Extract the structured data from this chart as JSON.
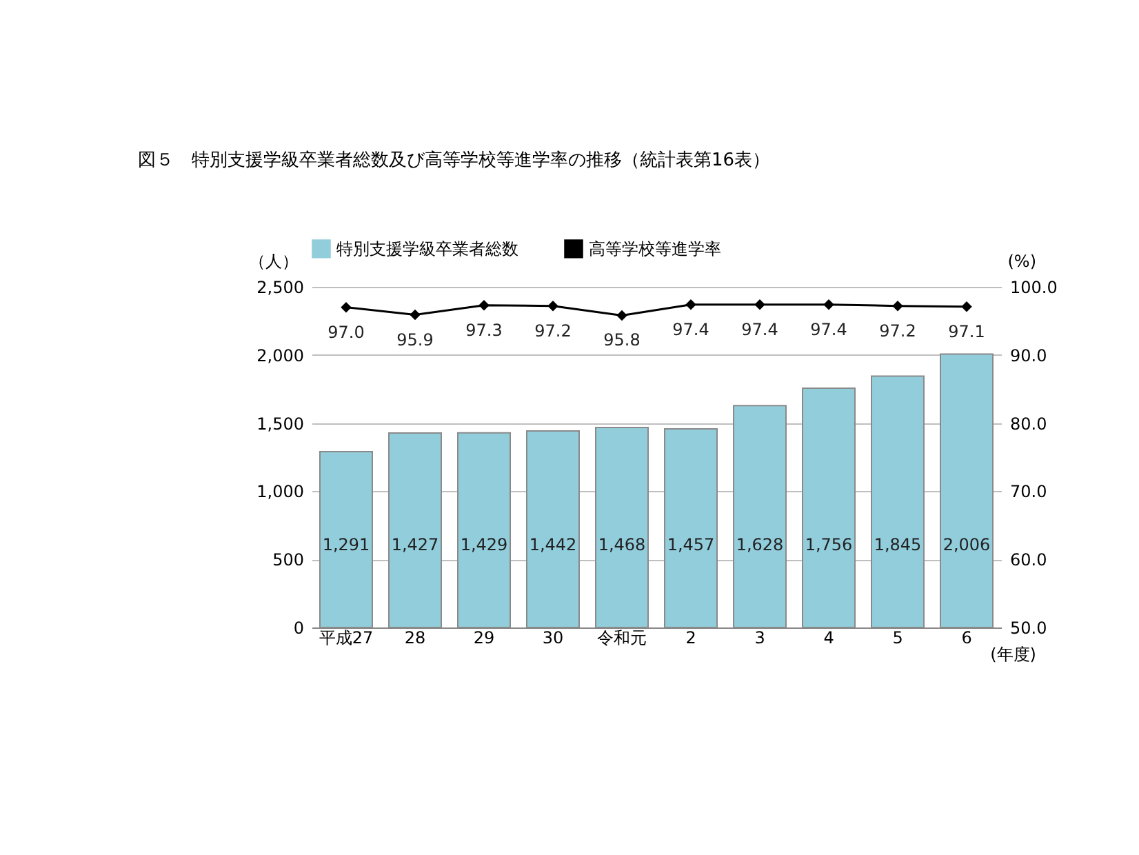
{
  "chart_data": {
    "type": "bar",
    "title": "図５　特別支援学級卒業者総数及び高等学校等進学率の推移（統計表第16表）",
    "ylabel": "（人）",
    "y2label": "(%)",
    "xlabel": "(年度)",
    "categories": [
      "平成27",
      "28",
      "29",
      "30",
      "令和元",
      "2",
      "3",
      "4",
      "5",
      "6"
    ],
    "series": [
      {
        "name": "特別支援学級卒業者総数",
        "color": "#92cddc",
        "values": [
          1291,
          1427,
          1429,
          1442,
          1468,
          1457,
          1628,
          1756,
          1845,
          2006
        ],
        "value_labels": [
          "1,291",
          "1,427",
          "1,429",
          "1,442",
          "1,468",
          "1,457",
          "1,628",
          "1,756",
          "1,845",
          "2,006"
        ]
      },
      {
        "name": "高等学校等進学率",
        "type": "line",
        "axis": "y2",
        "marker": "diamond",
        "color": "#000000",
        "values": [
          97.0,
          95.9,
          97.3,
          97.2,
          95.8,
          97.4,
          97.4,
          97.4,
          97.2,
          97.1
        ],
        "value_labels": [
          "97.0",
          "95.9",
          "97.3",
          "97.2",
          "95.8",
          "97.4",
          "97.4",
          "97.4",
          "97.2",
          "97.1"
        ]
      }
    ],
    "ylim": [
      0,
      2500
    ],
    "yticks": [
      0,
      500,
      {
        "value": 1000,
        "label": "1,000"
      },
      {
        "value": 1500,
        "label": "1,500"
      },
      {
        "value": 2000,
        "label": "2,000"
      },
      {
        "value": 2500,
        "label": "2,500"
      }
    ],
    "y2lim": [
      50,
      100
    ],
    "y2ticks": [
      {
        "value": 50,
        "label": "50.0"
      },
      {
        "value": 60,
        "label": "60.0"
      },
      {
        "value": 70,
        "label": "70.0"
      },
      {
        "value": 80,
        "label": "80.0"
      },
      {
        "value": 90,
        "label": "90.0"
      },
      {
        "value": 100,
        "label": "100.0"
      }
    ],
    "grid": "y",
    "legend": "top",
    "data_labels": true
  }
}
